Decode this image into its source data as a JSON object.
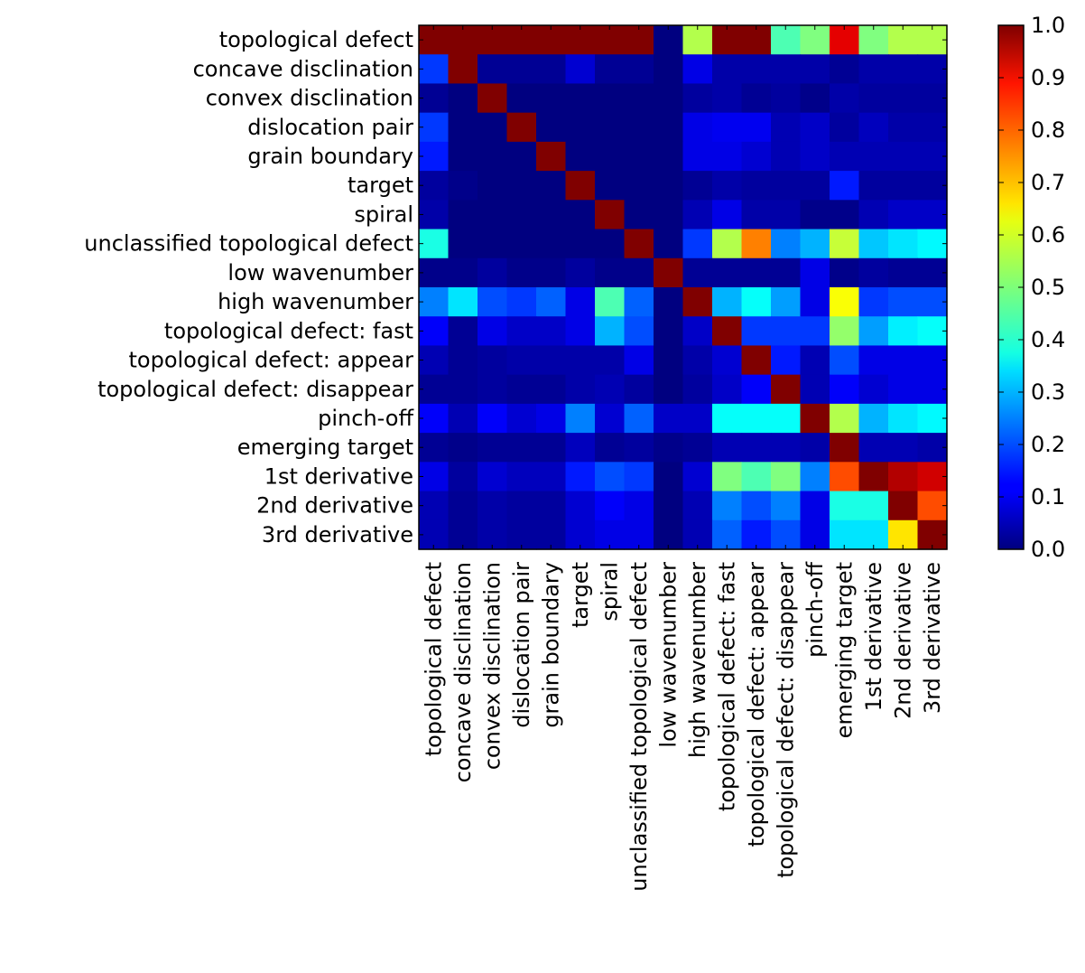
{
  "chart_data": {
    "type": "heatmap",
    "title": "",
    "xlabel": "",
    "ylabel": "",
    "colormap": "jet",
    "vmin": 0.0,
    "vmax": 1.0,
    "row_labels": [
      "topological defect",
      "concave disclination",
      "convex disclination",
      "dislocation pair",
      "grain boundary",
      "target",
      "spiral",
      "unclassified topological defect",
      "low wavenumber",
      "high wavenumber",
      "topological defect: fast",
      "topological defect: appear",
      "topological defect: disappear",
      "pinch-off",
      "emerging target",
      "1st derivative",
      "2nd derivative",
      "3rd derivative"
    ],
    "col_labels": [
      "topological defect",
      "concave disclination",
      "convex disclination",
      "dislocation pair",
      "grain boundary",
      "target",
      "spiral",
      "unclassified topological defect",
      "low wavenumber",
      "high wavenumber",
      "topological defect: fast",
      "topological defect: appear",
      "topological defect: disappear",
      "pinch-off",
      "emerging target",
      "1st derivative",
      "2nd derivative",
      "3rd derivative"
    ],
    "values": [
      [
        1.0,
        1.0,
        1.0,
        1.0,
        1.0,
        1.0,
        1.0,
        1.0,
        0.0,
        0.55,
        1.0,
        1.0,
        0.45,
        0.5,
        0.9,
        0.5,
        0.55,
        0.55
      ],
      [
        0.18,
        1.0,
        0.02,
        0.02,
        0.02,
        0.08,
        0.02,
        0.02,
        0.0,
        0.1,
        0.04,
        0.04,
        0.04,
        0.04,
        0.02,
        0.04,
        0.04,
        0.04
      ],
      [
        0.02,
        0.0,
        1.0,
        0.0,
        0.0,
        0.0,
        0.0,
        0.0,
        0.0,
        0.03,
        0.04,
        0.02,
        0.03,
        0.01,
        0.04,
        0.03,
        0.03,
        0.03
      ],
      [
        0.18,
        0.0,
        0.0,
        1.0,
        0.0,
        0.0,
        0.0,
        0.0,
        0.0,
        0.1,
        0.11,
        0.11,
        0.05,
        0.07,
        0.03,
        0.06,
        0.04,
        0.04
      ],
      [
        0.15,
        0.0,
        0.0,
        0.0,
        1.0,
        0.0,
        0.0,
        0.0,
        0.0,
        0.1,
        0.1,
        0.08,
        0.05,
        0.07,
        0.05,
        0.05,
        0.05,
        0.05
      ],
      [
        0.03,
        0.01,
        0.0,
        0.0,
        0.0,
        1.0,
        0.0,
        0.0,
        0.0,
        0.02,
        0.04,
        0.03,
        0.03,
        0.03,
        0.15,
        0.03,
        0.03,
        0.03
      ],
      [
        0.04,
        0.0,
        0.0,
        0.0,
        0.0,
        0.0,
        1.0,
        0.0,
        0.0,
        0.05,
        0.1,
        0.04,
        0.04,
        0.01,
        0.01,
        0.05,
        0.07,
        0.07
      ],
      [
        0.4,
        0.0,
        0.0,
        0.0,
        0.0,
        0.0,
        0.0,
        1.0,
        0.0,
        0.18,
        0.55,
        0.75,
        0.25,
        0.3,
        0.57,
        0.32,
        0.35,
        0.37
      ],
      [
        0.01,
        0.01,
        0.03,
        0.01,
        0.01,
        0.03,
        0.01,
        0.01,
        1.0,
        0.02,
        0.02,
        0.02,
        0.02,
        0.1,
        0.01,
        0.03,
        0.02,
        0.02
      ],
      [
        0.25,
        0.35,
        0.2,
        0.18,
        0.22,
        0.1,
        0.45,
        0.22,
        0.0,
        1.0,
        0.3,
        0.38,
        0.28,
        0.1,
        0.62,
        0.18,
        0.2,
        0.2
      ],
      [
        0.12,
        0.02,
        0.1,
        0.07,
        0.07,
        0.1,
        0.3,
        0.2,
        0.0,
        0.07,
        1.0,
        0.18,
        0.18,
        0.18,
        0.52,
        0.28,
        0.36,
        0.38
      ],
      [
        0.05,
        0.02,
        0.03,
        0.04,
        0.04,
        0.04,
        0.04,
        0.1,
        0.0,
        0.04,
        0.08,
        1.0,
        0.15,
        0.05,
        0.2,
        0.1,
        0.1,
        0.1
      ],
      [
        0.02,
        0.02,
        0.03,
        0.02,
        0.02,
        0.04,
        0.05,
        0.03,
        0.0,
        0.03,
        0.07,
        0.12,
        1.0,
        0.05,
        0.12,
        0.08,
        0.1,
        0.1
      ],
      [
        0.12,
        0.05,
        0.12,
        0.08,
        0.1,
        0.25,
        0.08,
        0.22,
        0.07,
        0.07,
        0.38,
        0.38,
        0.38,
        1.0,
        0.55,
        0.3,
        0.35,
        0.37
      ],
      [
        0.02,
        0.01,
        0.02,
        0.02,
        0.02,
        0.06,
        0.02,
        0.03,
        0.01,
        0.02,
        0.05,
        0.05,
        0.05,
        0.04,
        1.0,
        0.05,
        0.05,
        0.04
      ],
      [
        0.1,
        0.03,
        0.08,
        0.06,
        0.06,
        0.15,
        0.2,
        0.18,
        0.0,
        0.08,
        0.5,
        0.45,
        0.5,
        0.25,
        0.8,
        1.0,
        0.95,
        0.92
      ],
      [
        0.05,
        0.02,
        0.04,
        0.03,
        0.03,
        0.08,
        0.12,
        0.1,
        0.0,
        0.05,
        0.25,
        0.2,
        0.25,
        0.1,
        0.4,
        0.4,
        1.0,
        0.8
      ],
      [
        0.05,
        0.02,
        0.04,
        0.03,
        0.03,
        0.08,
        0.1,
        0.1,
        0.0,
        0.05,
        0.22,
        0.15,
        0.2,
        0.1,
        0.35,
        0.35,
        0.65,
        1.0
      ]
    ],
    "colorbar": {
      "ticks": [
        0.0,
        0.1,
        0.2,
        0.3,
        0.4,
        0.5,
        0.6,
        0.7,
        0.8,
        0.9,
        1.0
      ],
      "tick_labels": [
        "0.0",
        "0.1",
        "0.2",
        "0.3",
        "0.4",
        "0.5",
        "0.6",
        "0.7",
        "0.8",
        "0.9",
        "1.0"
      ]
    }
  }
}
